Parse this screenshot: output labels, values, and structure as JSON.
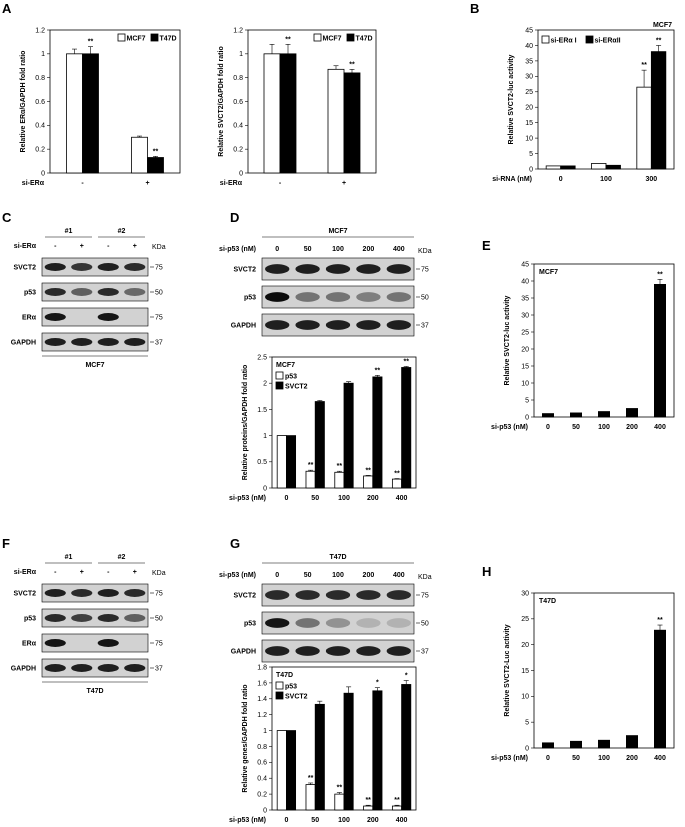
{
  "panel_labels": [
    "A",
    "B",
    "C",
    "D",
    "E",
    "F",
    "G",
    "H"
  ],
  "common": {
    "kda": "KDa",
    "star2": "**",
    "star1": "*",
    "minus": "-",
    "plus": "+",
    "ser_label": "si-ERα"
  },
  "chart_data": [
    {
      "id": "A1",
      "type": "bar",
      "title": "",
      "ylabel": "Relative ERα/GAPDH fold ratio",
      "xlabel": "si-ERα",
      "categories": [
        "-",
        "+"
      ],
      "series": [
        {
          "name": "MCF7",
          "values": [
            1.0,
            0.3
          ],
          "errors": [
            0.04,
            0.01
          ]
        },
        {
          "name": "T47D",
          "values": [
            1.0,
            0.13
          ],
          "errors": [
            0.06,
            0.01
          ]
        }
      ],
      "significance": [
        [
          "",
          ""
        ],
        [
          "**",
          "**"
        ]
      ],
      "ylim": [
        0,
        1.2
      ],
      "yticks": [
        0,
        0.2,
        0.4,
        0.6,
        0.8,
        1,
        1.2
      ]
    },
    {
      "id": "A2",
      "type": "bar",
      "title": "",
      "ylabel": "Relative SVCT2/GAPDH fold ratio",
      "xlabel": "si-ERα",
      "categories": [
        "-",
        "+"
      ],
      "series": [
        {
          "name": "MCF7",
          "values": [
            1.0,
            0.87
          ],
          "errors": [
            0.08,
            0.03
          ]
        },
        {
          "name": "T47D",
          "values": [
            1.0,
            0.84
          ],
          "errors": [
            0.08,
            0.03
          ]
        }
      ],
      "significance": [
        [
          "",
          ""
        ],
        [
          "**",
          "**"
        ]
      ],
      "ylim": [
        0,
        1.2
      ],
      "yticks": [
        0,
        0.2,
        0.4,
        0.6,
        0.8,
        1,
        1.2
      ]
    },
    {
      "id": "B",
      "type": "bar",
      "title": "MCF7",
      "ylabel": "Relative SVCT2-luc activity",
      "xlabel": "si-RNA (nM)",
      "categories": [
        "0",
        "100",
        "300"
      ],
      "series": [
        {
          "name": "si-ERα I",
          "values": [
            1.0,
            1.8,
            26.5
          ],
          "errors": [
            0,
            0,
            5.5
          ]
        },
        {
          "name": "si-ERαII",
          "values": [
            1.0,
            1.2,
            38.0
          ],
          "errors": [
            0,
            0,
            2.0
          ]
        }
      ],
      "significance": [
        [
          "",
          "",
          "**"
        ],
        [
          "",
          "",
          "**"
        ]
      ],
      "ylim": [
        0,
        45
      ],
      "yticks": [
        0,
        5,
        10,
        15,
        20,
        25,
        30,
        35,
        40,
        45
      ]
    },
    {
      "id": "D",
      "type": "bar",
      "title": "MCF7",
      "ylabel": "Relative proteins/GAPDH fold ratio",
      "xlabel": "si-p53 (nM)",
      "categories": [
        "0",
        "50",
        "100",
        "200",
        "400"
      ],
      "series": [
        {
          "name": "p53",
          "values": [
            1.0,
            0.32,
            0.3,
            0.23,
            0.17
          ],
          "errors": [
            0,
            0.02,
            0.02,
            0.01,
            0.01
          ]
        },
        {
          "name": "SVCT2",
          "values": [
            1.0,
            1.65,
            2.0,
            2.12,
            2.3
          ],
          "errors": [
            0,
            0.02,
            0.03,
            0.03,
            0.02
          ]
        }
      ],
      "significance": [
        [
          "",
          "**",
          "**",
          "**",
          "**"
        ],
        [
          "",
          "",
          "",
          "**",
          "**"
        ]
      ],
      "ylim": [
        0,
        2.5
      ],
      "yticks": [
        0,
        0.5,
        1,
        1.5,
        2,
        2.5
      ]
    },
    {
      "id": "E",
      "type": "bar",
      "title": "MCF7",
      "ylabel": "Relative SVCT2-luc activity",
      "xlabel": "si-p53 (nM)",
      "categories": [
        "0",
        "50",
        "100",
        "200",
        "400"
      ],
      "series": [
        {
          "name": "SVCT2-luc",
          "values": [
            1.0,
            1.2,
            1.6,
            2.5,
            39.0
          ],
          "errors": [
            0,
            0,
            0,
            0,
            1.5
          ]
        }
      ],
      "significance": [
        [
          "",
          "",
          "",
          "",
          "**"
        ]
      ],
      "ylim": [
        0,
        45
      ],
      "yticks": [
        0,
        5,
        10,
        15,
        20,
        25,
        30,
        35,
        40,
        45
      ]
    },
    {
      "id": "G",
      "type": "bar",
      "title": "T47D",
      "ylabel": "Relative genes/GAPDH fold ratio",
      "xlabel": "si-p53 (nM)",
      "categories": [
        "0",
        "50",
        "100",
        "200",
        "400"
      ],
      "series": [
        {
          "name": "p53",
          "values": [
            1.0,
            0.32,
            0.2,
            0.05,
            0.05
          ],
          "errors": [
            0,
            0.02,
            0.02,
            0.01,
            0.01
          ]
        },
        {
          "name": "SVCT2",
          "values": [
            1.0,
            1.33,
            1.47,
            1.5,
            1.58
          ],
          "errors": [
            0,
            0.04,
            0.08,
            0.04,
            0.05
          ]
        }
      ],
      "significance": [
        [
          "",
          "**",
          "**",
          "**",
          "**"
        ],
        [
          "",
          "",
          "",
          "*",
          "*"
        ]
      ],
      "ylim": [
        0,
        1.8
      ],
      "yticks": [
        0,
        0.2,
        0.4,
        0.6,
        0.8,
        1,
        1.2,
        1.4,
        1.6,
        1.8
      ]
    },
    {
      "id": "H",
      "type": "bar",
      "title": "T47D",
      "ylabel": "Relative SVCT2-Luc activity",
      "xlabel": "si-p53 (nM)",
      "categories": [
        "0",
        "50",
        "100",
        "200",
        "400"
      ],
      "series": [
        {
          "name": "SVCT2-Luc",
          "values": [
            1.0,
            1.3,
            1.5,
            2.4,
            22.8
          ],
          "errors": [
            0,
            0,
            0,
            0,
            1.0
          ]
        }
      ],
      "significance": [
        [
          "",
          "",
          "",
          "",
          "**"
        ]
      ],
      "ylim": [
        0,
        30
      ],
      "yticks": [
        0,
        5,
        10,
        15,
        20,
        25,
        30
      ]
    }
  ],
  "blots": {
    "C": {
      "cell_line": "MCF7",
      "groups": [
        "#1",
        "#2"
      ],
      "treatment": "si-ERα",
      "lanes": [
        "-",
        "+",
        "-",
        "+"
      ],
      "rows": [
        {
          "name": "SVCT2",
          "kda": "75"
        },
        {
          "name": "p53",
          "kda": "50"
        },
        {
          "name": "ERα",
          "kda": "75"
        },
        {
          "name": "GAPDH",
          "kda": "37"
        }
      ]
    },
    "D": {
      "cell_line": "MCF7",
      "treatment": "si-p53 (nM)",
      "lanes": [
        "0",
        "50",
        "100",
        "200",
        "400"
      ],
      "rows": [
        {
          "name": "SVCT2",
          "kda": "75"
        },
        {
          "name": "p53",
          "kda": "50"
        },
        {
          "name": "GAPDH",
          "kda": "37"
        }
      ]
    },
    "F": {
      "cell_line": "T47D",
      "groups": [
        "#1",
        "#2"
      ],
      "treatment": "si-ERα",
      "lanes": [
        "-",
        "+",
        "-",
        "+"
      ],
      "rows": [
        {
          "name": "SVCT2",
          "kda": "75"
        },
        {
          "name": "p53",
          "kda": "50"
        },
        {
          "name": "ERα",
          "kda": "75"
        },
        {
          "name": "GAPDH",
          "kda": "37"
        }
      ]
    },
    "G": {
      "cell_line": "T47D",
      "treatment": "si-p53 (nM)",
      "lanes": [
        "0",
        "50",
        "100",
        "200",
        "400"
      ],
      "rows": [
        {
          "name": "SVCT2",
          "kda": "75"
        },
        {
          "name": "p53",
          "kda": "50"
        },
        {
          "name": "GAPDH",
          "kda": "37"
        }
      ]
    }
  }
}
